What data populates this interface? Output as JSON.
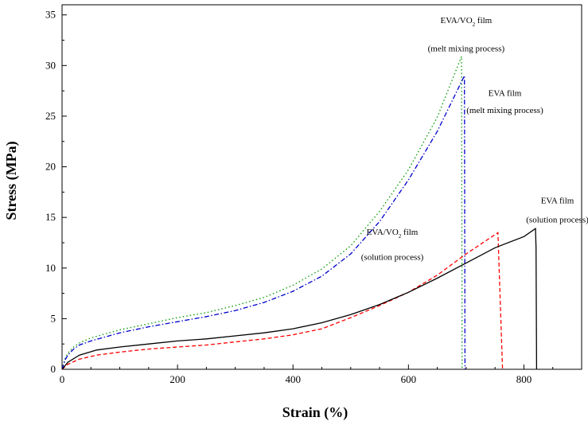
{
  "chart_data": {
    "type": "line",
    "xlabel": "Strain (%)",
    "ylabel": "Stress (MPa)",
    "xlim": [
      0,
      900
    ],
    "ylim": [
      0,
      36
    ],
    "x_ticks": [
      0,
      200,
      400,
      600,
      800
    ],
    "y_ticks": [
      0,
      5,
      10,
      15,
      20,
      25,
      30,
      35
    ],
    "grid": false,
    "series": [
      {
        "color": "#009900",
        "style": "dotted",
        "points": [
          [
            0,
            0
          ],
          [
            5,
            1.0
          ],
          [
            10,
            1.6
          ],
          [
            20,
            2.2
          ],
          [
            30,
            2.6
          ],
          [
            50,
            3.1
          ],
          [
            100,
            3.9
          ],
          [
            150,
            4.5
          ],
          [
            200,
            5.1
          ],
          [
            250,
            5.6
          ],
          [
            300,
            6.3
          ],
          [
            350,
            7.1
          ],
          [
            400,
            8.3
          ],
          [
            450,
            9.9
          ],
          [
            500,
            12.2
          ],
          [
            550,
            15.6
          ],
          [
            600,
            19.7
          ],
          [
            650,
            24.9
          ],
          [
            692,
            30.9
          ],
          [
            693,
            0
          ]
        ]
      },
      {
        "color": "#0000cc",
        "style": "dashdot",
        "points": [
          [
            0,
            0
          ],
          [
            5,
            0.9
          ],
          [
            10,
            1.4
          ],
          [
            20,
            2.0
          ],
          [
            30,
            2.4
          ],
          [
            50,
            2.8
          ],
          [
            100,
            3.6
          ],
          [
            150,
            4.2
          ],
          [
            200,
            4.7
          ],
          [
            250,
            5.2
          ],
          [
            300,
            5.8
          ],
          [
            350,
            6.6
          ],
          [
            400,
            7.7
          ],
          [
            450,
            9.2
          ],
          [
            500,
            11.4
          ],
          [
            550,
            14.6
          ],
          [
            600,
            18.7
          ],
          [
            650,
            23.5
          ],
          [
            697,
            29.0
          ],
          [
            698,
            0
          ]
        ]
      },
      {
        "color": "#ff0000",
        "style": "dashed",
        "points": [
          [
            0,
            0
          ],
          [
            10,
            0.5
          ],
          [
            30,
            1.0
          ],
          [
            60,
            1.4
          ],
          [
            100,
            1.7
          ],
          [
            150,
            2.0
          ],
          [
            200,
            2.2
          ],
          [
            250,
            2.4
          ],
          [
            300,
            2.7
          ],
          [
            350,
            3.0
          ],
          [
            400,
            3.4
          ],
          [
            450,
            4.0
          ],
          [
            500,
            5.1
          ],
          [
            550,
            6.3
          ],
          [
            600,
            7.6
          ],
          [
            650,
            9.3
          ],
          [
            700,
            11.4
          ],
          [
            755,
            13.5
          ],
          [
            763,
            0
          ]
        ]
      },
      {
        "color": "#000000",
        "style": "solid",
        "points": [
          [
            0,
            0
          ],
          [
            10,
            0.7
          ],
          [
            30,
            1.4
          ],
          [
            60,
            1.9
          ],
          [
            100,
            2.2
          ],
          [
            150,
            2.5
          ],
          [
            200,
            2.8
          ],
          [
            250,
            3.0
          ],
          [
            300,
            3.3
          ],
          [
            350,
            3.6
          ],
          [
            400,
            4.0
          ],
          [
            450,
            4.6
          ],
          [
            500,
            5.4
          ],
          [
            550,
            6.4
          ],
          [
            600,
            7.6
          ],
          [
            650,
            9.0
          ],
          [
            700,
            10.5
          ],
          [
            750,
            12.0
          ],
          [
            800,
            13.1
          ],
          [
            820,
            13.9
          ],
          [
            821,
            12.0
          ],
          [
            822,
            0
          ]
        ]
      }
    ],
    "annotations": [
      {
        "main": "EVA/VO",
        "sub": "2",
        "tail": " film",
        "x": 700,
        "y": 34.2,
        "anchor": "middle"
      },
      {
        "main": "(melt mixing process)",
        "x": 700,
        "y": 31.4,
        "anchor": "middle"
      },
      {
        "main": "EVA film",
        "x": 767,
        "y": 27.0,
        "anchor": "middle"
      },
      {
        "main": "(melt mixing process)",
        "x": 767,
        "y": 25.3,
        "anchor": "middle"
      },
      {
        "main": "EVA film",
        "x": 858,
        "y": 16.4,
        "anchor": "middle"
      },
      {
        "main": "(solution process)",
        "x": 858,
        "y": 14.5,
        "anchor": "middle"
      },
      {
        "main": "EVA/VO",
        "sub": "2",
        "tail": " film",
        "x": 572,
        "y": 13.3,
        "anchor": "middle"
      },
      {
        "main": "(solution process)",
        "x": 572,
        "y": 10.8,
        "anchor": "middle"
      }
    ]
  }
}
